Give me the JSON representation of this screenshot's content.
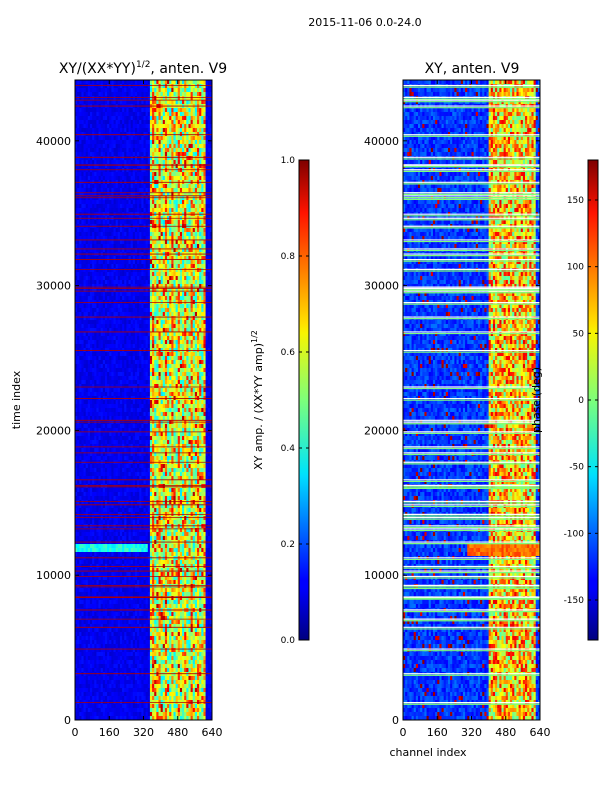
{
  "suptitle": "2015-11-06 0.0-24.0",
  "chart_data": [
    {
      "type": "heatmap",
      "title_main": "XY/(XX*YY)",
      "title_sup": "1/2",
      "title_suffix": ", anten. V9",
      "xlabel": "",
      "ylabel": "time index",
      "xlim": [
        0,
        640
      ],
      "ylim": [
        0,
        44200
      ],
      "xticks": [
        "0",
        "160",
        "320",
        "480",
        "640"
      ],
      "yticks": [
        "0",
        "10000",
        "20000",
        "30000",
        "40000"
      ],
      "colorbar": {
        "label_main": "XY amp. / (XX*YY amp)",
        "label_sup": "1/2",
        "range": [
          0.0,
          1.0
        ],
        "ticks": [
          "0.0",
          "0.2",
          "0.4",
          "0.6",
          "0.8",
          "1.0"
        ]
      },
      "colormap": "jet",
      "notes": "Low amplitude (~0.1) across most channels; higher amplitude (0.4-0.9) in channels ~400-600; flagged rows (red lines) at many time indices; strong feature near time index 11800."
    },
    {
      "type": "heatmap",
      "title": "XY, anten. V9",
      "xlabel": "channel index",
      "ylabel": "",
      "xlim": [
        0,
        640
      ],
      "ylim": [
        0,
        44200
      ],
      "xticks": [
        "0",
        "160",
        "320",
        "480",
        "640"
      ],
      "yticks": [
        "0",
        "10000",
        "20000",
        "30000",
        "40000"
      ],
      "colorbar": {
        "label": "phase (deg)",
        "range": [
          -180,
          180
        ],
        "ticks": [
          "-150",
          "-100",
          "-50",
          "0",
          "50",
          "100",
          "150"
        ]
      },
      "colormap": "jet",
      "notes": "Phase mostly near -150 deg in low channels; structured phase (0 to 180 deg) in channels ~400-640; many horizontal flagged bands."
    }
  ]
}
